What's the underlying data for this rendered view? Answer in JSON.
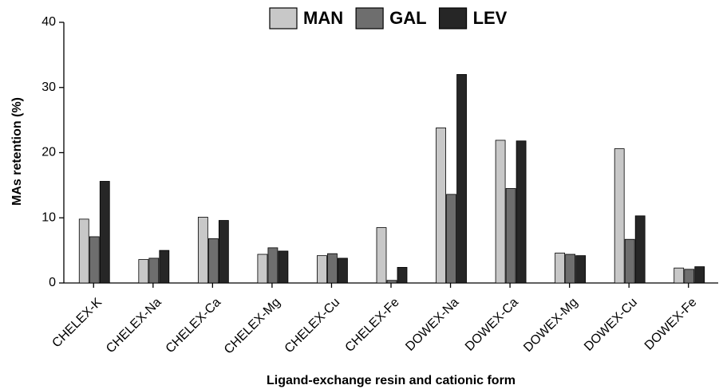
{
  "chart_data": {
    "type": "bar",
    "x_label": "Ligand-exchange resin and cationic form",
    "y_label": "MAs retention (%)",
    "categories": [
      "CHELEX-K",
      "CHELEX-Na",
      "CHELEX-Ca",
      "CHELEX-Mg",
      "CHELEX-Cu",
      "CHELEX-Fe",
      "DOWEX-Na",
      "DOWEX-Ca",
      "DOWEX-Mg",
      "DOWEX-Cu",
      "DOWEX-Fe"
    ],
    "series": [
      {
        "name": "MAN",
        "color": "#c8c8c8",
        "values": [
          9.8,
          3.6,
          10.1,
          4.4,
          4.2,
          8.5,
          23.8,
          21.9,
          4.6,
          20.6,
          2.3
        ]
      },
      {
        "name": "GAL",
        "color": "#6e6e6e",
        "values": [
          7.1,
          3.8,
          6.8,
          5.4,
          4.5,
          0.4,
          13.6,
          14.5,
          4.4,
          6.7,
          2.1
        ]
      },
      {
        "name": "LEV",
        "color": "#262626",
        "values": [
          15.6,
          5.0,
          9.6,
          4.9,
          3.8,
          2.4,
          32.0,
          21.8,
          4.2,
          10.3,
          2.5
        ]
      }
    ],
    "ylim": [
      0,
      40
    ],
    "yticks": [
      0,
      10,
      20,
      30,
      40
    ],
    "legend": "top"
  }
}
